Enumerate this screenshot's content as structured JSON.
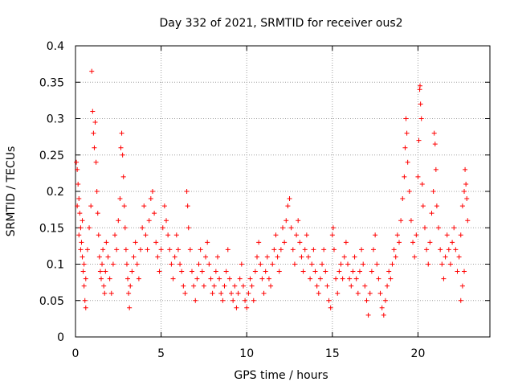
{
  "chart_data": {
    "type": "scatter",
    "title": "Day 332 of 2021, SRMTID for receiver ous2",
    "xlabel": "GPS time / hours",
    "ylabel": "SRMTID / TECUs",
    "xlim": [
      0,
      24.2
    ],
    "ylim": [
      0,
      0.4
    ],
    "xticks": [
      0,
      5,
      10,
      15,
      20
    ],
    "yticks": [
      0,
      0.05,
      0.1,
      0.15,
      0.2,
      0.25,
      0.3,
      0.35,
      0.4
    ],
    "ytick_labels": [
      "0",
      "0.05",
      "0.1",
      "0.15",
      "0.2",
      "0.25",
      "0.3",
      "0.35",
      "0.4"
    ],
    "xtick_labels": [
      "0",
      "5",
      "10",
      "15",
      "20"
    ],
    "grid": true,
    "marker": "+",
    "color": "#ff0000",
    "series": [
      {
        "name": "ous2",
        "points": [
          [
            0.05,
            0.24
          ],
          [
            0.1,
            0.23
          ],
          [
            0.15,
            0.21
          ],
          [
            0.2,
            0.19
          ],
          [
            0.25,
            0.17
          ],
          [
            0.3,
            0.15
          ],
          [
            0.35,
            0.13
          ],
          [
            0.4,
            0.11
          ],
          [
            0.45,
            0.09
          ],
          [
            0.5,
            0.07
          ],
          [
            0.55,
            0.05
          ],
          [
            0.6,
            0.04
          ],
          [
            0.1,
            0.18
          ],
          [
            0.2,
            0.14
          ],
          [
            0.3,
            0.12
          ],
          [
            0.4,
            0.16
          ],
          [
            0.5,
            0.1
          ],
          [
            0.6,
            0.08
          ],
          [
            0.7,
            0.12
          ],
          [
            0.8,
            0.15
          ],
          [
            0.9,
            0.18
          ],
          [
            0.95,
            0.365
          ],
          [
            1.0,
            0.31
          ],
          [
            1.05,
            0.28
          ],
          [
            1.1,
            0.26
          ],
          [
            1.15,
            0.295
          ],
          [
            1.2,
            0.24
          ],
          [
            1.25,
            0.2
          ],
          [
            1.3,
            0.17
          ],
          [
            1.35,
            0.14
          ],
          [
            1.4,
            0.11
          ],
          [
            1.45,
            0.09
          ],
          [
            1.5,
            0.08
          ],
          [
            1.55,
            0.1
          ],
          [
            1.6,
            0.12
          ],
          [
            1.65,
            0.07
          ],
          [
            1.7,
            0.06
          ],
          [
            1.75,
            0.09
          ],
          [
            1.8,
            0.13
          ],
          [
            1.9,
            0.11
          ],
          [
            2.0,
            0.08
          ],
          [
            2.1,
            0.06
          ],
          [
            2.2,
            0.1
          ],
          [
            2.3,
            0.14
          ],
          [
            2.4,
            0.12
          ],
          [
            2.5,
            0.16
          ],
          [
            2.6,
            0.19
          ],
          [
            2.65,
            0.26
          ],
          [
            2.7,
            0.28
          ],
          [
            2.75,
            0.25
          ],
          [
            2.8,
            0.22
          ],
          [
            2.85,
            0.18
          ],
          [
            2.9,
            0.15
          ],
          [
            2.95,
            0.12
          ],
          [
            3.0,
            0.1
          ],
          [
            3.05,
            0.08
          ],
          [
            3.1,
            0.06
          ],
          [
            3.15,
            0.04
          ],
          [
            3.2,
            0.07
          ],
          [
            3.3,
            0.09
          ],
          [
            3.4,
            0.11
          ],
          [
            3.5,
            0.13
          ],
          [
            3.6,
            0.1
          ],
          [
            3.7,
            0.08
          ],
          [
            3.8,
            0.12
          ],
          [
            3.9,
            0.15
          ],
          [
            4.0,
            0.18
          ],
          [
            4.1,
            0.14
          ],
          [
            4.2,
            0.12
          ],
          [
            4.3,
            0.16
          ],
          [
            4.4,
            0.19
          ],
          [
            4.5,
            0.2
          ],
          [
            4.6,
            0.17
          ],
          [
            4.7,
            0.13
          ],
          [
            4.8,
            0.11
          ],
          [
            4.9,
            0.09
          ],
          [
            5.0,
            0.12
          ],
          [
            5.1,
            0.15
          ],
          [
            5.2,
            0.18
          ],
          [
            5.3,
            0.16
          ],
          [
            5.4,
            0.14
          ],
          [
            5.5,
            0.12
          ],
          [
            5.6,
            0.1
          ],
          [
            5.7,
            0.08
          ],
          [
            5.8,
            0.11
          ],
          [
            5.9,
            0.14
          ],
          [
            6.0,
            0.12
          ],
          [
            6.1,
            0.1
          ],
          [
            6.2,
            0.09
          ],
          [
            6.3,
            0.07
          ],
          [
            6.4,
            0.06
          ],
          [
            6.5,
            0.2
          ],
          [
            6.55,
            0.18
          ],
          [
            6.6,
            0.15
          ],
          [
            6.7,
            0.12
          ],
          [
            6.8,
            0.09
          ],
          [
            6.9,
            0.07
          ],
          [
            7.0,
            0.05
          ],
          [
            7.1,
            0.08
          ],
          [
            7.2,
            0.1
          ],
          [
            7.3,
            0.12
          ],
          [
            7.4,
            0.09
          ],
          [
            7.5,
            0.07
          ],
          [
            7.6,
            0.11
          ],
          [
            7.7,
            0.13
          ],
          [
            7.8,
            0.1
          ],
          [
            7.9,
            0.08
          ],
          [
            8.0,
            0.06
          ],
          [
            8.1,
            0.07
          ],
          [
            8.2,
            0.09
          ],
          [
            8.3,
            0.11
          ],
          [
            8.4,
            0.08
          ],
          [
            8.5,
            0.06
          ],
          [
            8.6,
            0.05
          ],
          [
            8.7,
            0.07
          ],
          [
            8.8,
            0.09
          ],
          [
            8.9,
            0.12
          ],
          [
            9.0,
            0.08
          ],
          [
            9.1,
            0.06
          ],
          [
            9.2,
            0.05
          ],
          [
            9.3,
            0.07
          ],
          [
            9.4,
            0.04
          ],
          [
            9.5,
            0.06
          ],
          [
            9.6,
            0.08
          ],
          [
            9.7,
            0.1
          ],
          [
            9.8,
            0.07
          ],
          [
            9.9,
            0.05
          ],
          [
            10.0,
            0.04
          ],
          [
            10.1,
            0.06
          ],
          [
            10.2,
            0.08
          ],
          [
            10.3,
            0.07
          ],
          [
            10.4,
            0.05
          ],
          [
            10.5,
            0.09
          ],
          [
            10.6,
            0.11
          ],
          [
            10.7,
            0.13
          ],
          [
            10.8,
            0.1
          ],
          [
            10.9,
            0.08
          ],
          [
            11.0,
            0.06
          ],
          [
            11.1,
            0.09
          ],
          [
            11.2,
            0.11
          ],
          [
            11.3,
            0.08
          ],
          [
            11.4,
            0.07
          ],
          [
            11.5,
            0.1
          ],
          [
            11.6,
            0.12
          ],
          [
            11.7,
            0.14
          ],
          [
            11.8,
            0.11
          ],
          [
            11.9,
            0.09
          ],
          [
            12.0,
            0.12
          ],
          [
            12.1,
            0.15
          ],
          [
            12.2,
            0.13
          ],
          [
            12.3,
            0.16
          ],
          [
            12.4,
            0.18
          ],
          [
            12.5,
            0.19
          ],
          [
            12.6,
            0.15
          ],
          [
            12.7,
            0.12
          ],
          [
            12.8,
            0.1
          ],
          [
            12.9,
            0.14
          ],
          [
            13.0,
            0.16
          ],
          [
            13.1,
            0.13
          ],
          [
            13.2,
            0.11
          ],
          [
            13.3,
            0.09
          ],
          [
            13.4,
            0.12
          ],
          [
            13.5,
            0.14
          ],
          [
            13.6,
            0.11
          ],
          [
            13.7,
            0.08
          ],
          [
            13.8,
            0.1
          ],
          [
            13.9,
            0.12
          ],
          [
            14.0,
            0.09
          ],
          [
            14.1,
            0.07
          ],
          [
            14.2,
            0.06
          ],
          [
            14.3,
            0.08
          ],
          [
            14.4,
            0.1
          ],
          [
            14.5,
            0.12
          ],
          [
            14.6,
            0.09
          ],
          [
            14.7,
            0.07
          ],
          [
            14.8,
            0.05
          ],
          [
            14.9,
            0.04
          ],
          [
            15.0,
            0.14
          ],
          [
            15.05,
            0.15
          ],
          [
            15.1,
            0.12
          ],
          [
            15.2,
            0.08
          ],
          [
            15.3,
            0.06
          ],
          [
            15.4,
            0.09
          ],
          [
            15.5,
            0.1
          ],
          [
            15.6,
            0.08
          ],
          [
            15.7,
            0.11
          ],
          [
            15.8,
            0.13
          ],
          [
            15.9,
            0.1
          ],
          [
            16.0,
            0.08
          ],
          [
            16.1,
            0.07
          ],
          [
            16.2,
            0.09
          ],
          [
            16.3,
            0.11
          ],
          [
            16.4,
            0.08
          ],
          [
            16.5,
            0.06
          ],
          [
            16.6,
            0.09
          ],
          [
            16.7,
            0.12
          ],
          [
            16.8,
            0.1
          ],
          [
            16.9,
            0.07
          ],
          [
            17.0,
            0.05
          ],
          [
            17.1,
            0.03
          ],
          [
            17.2,
            0.06
          ],
          [
            17.3,
            0.09
          ],
          [
            17.4,
            0.12
          ],
          [
            17.5,
            0.14
          ],
          [
            17.6,
            0.1
          ],
          [
            17.7,
            0.08
          ],
          [
            17.8,
            0.06
          ],
          [
            17.9,
            0.04
          ],
          [
            18.0,
            0.03
          ],
          [
            18.1,
            0.05
          ],
          [
            18.2,
            0.07
          ],
          [
            18.3,
            0.09
          ],
          [
            18.4,
            0.08
          ],
          [
            18.5,
            0.1
          ],
          [
            18.6,
            0.12
          ],
          [
            18.7,
            0.11
          ],
          [
            18.8,
            0.14
          ],
          [
            18.9,
            0.13
          ],
          [
            19.0,
            0.16
          ],
          [
            19.1,
            0.19
          ],
          [
            19.2,
            0.22
          ],
          [
            19.25,
            0.26
          ],
          [
            19.3,
            0.3
          ],
          [
            19.35,
            0.28
          ],
          [
            19.4,
            0.24
          ],
          [
            19.5,
            0.2
          ],
          [
            19.6,
            0.16
          ],
          [
            19.7,
            0.13
          ],
          [
            19.8,
            0.11
          ],
          [
            19.9,
            0.14
          ],
          [
            20.0,
            0.22
          ],
          [
            20.05,
            0.27
          ],
          [
            20.1,
            0.34
          ],
          [
            20.12,
            0.345
          ],
          [
            20.15,
            0.32
          ],
          [
            20.2,
            0.3
          ],
          [
            20.25,
            0.21
          ],
          [
            20.3,
            0.18
          ],
          [
            20.4,
            0.15
          ],
          [
            20.5,
            0.12
          ],
          [
            20.6,
            0.1
          ],
          [
            20.7,
            0.13
          ],
          [
            20.8,
            0.17
          ],
          [
            20.9,
            0.2
          ],
          [
            20.95,
            0.28
          ],
          [
            21.0,
            0.265
          ],
          [
            21.05,
            0.23
          ],
          [
            21.1,
            0.18
          ],
          [
            21.2,
            0.15
          ],
          [
            21.3,
            0.12
          ],
          [
            21.4,
            0.1
          ],
          [
            21.5,
            0.08
          ],
          [
            21.6,
            0.11
          ],
          [
            21.7,
            0.14
          ],
          [
            21.8,
            0.12
          ],
          [
            21.9,
            0.1
          ],
          [
            22.0,
            0.13
          ],
          [
            22.1,
            0.15
          ],
          [
            22.2,
            0.12
          ],
          [
            22.3,
            0.09
          ],
          [
            22.4,
            0.11
          ],
          [
            22.5,
            0.14
          ],
          [
            22.6,
            0.18
          ],
          [
            22.7,
            0.2
          ],
          [
            22.75,
            0.23
          ],
          [
            22.8,
            0.21
          ],
          [
            22.85,
            0.19
          ],
          [
            22.9,
            0.16
          ],
          [
            22.6,
            0.07
          ],
          [
            22.5,
            0.05
          ],
          [
            22.7,
            0.09
          ]
        ]
      }
    ]
  }
}
